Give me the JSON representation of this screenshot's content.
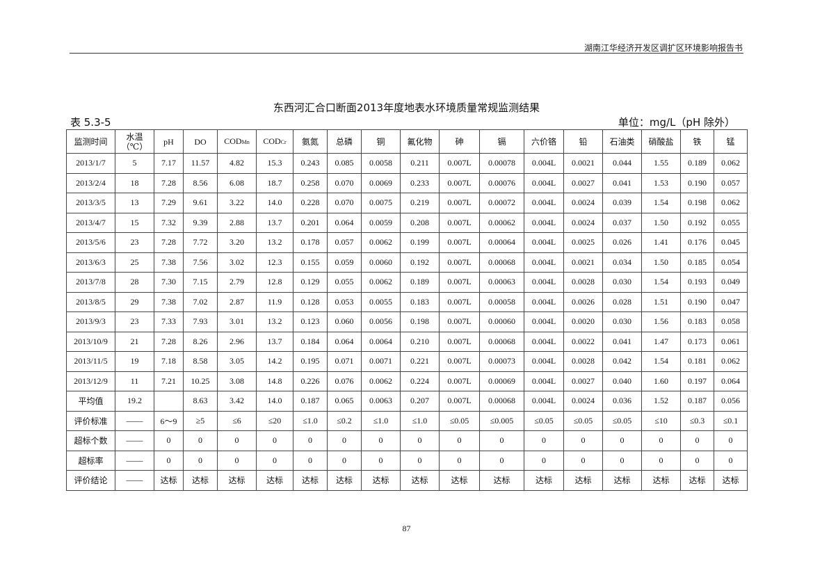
{
  "running_header": "湖南江华经济开发区调扩区环境影响报告书",
  "title": "东西河汇合口断面2013年度地表水环境质量常规监测结果",
  "table_number": "表 5.3-5",
  "unit": "单位：mg/L（pH 除外）",
  "table": {
    "headers": [
      {
        "text": "监测时间"
      },
      {
        "text": "水温",
        "line2": "（℃）"
      },
      {
        "text": "pH"
      },
      {
        "text": "DO"
      },
      {
        "text": "COD",
        "sub": "Mn"
      },
      {
        "text": "COD",
        "sub": "Cr"
      },
      {
        "text": "氨氮"
      },
      {
        "text": "总磷"
      },
      {
        "text": "铜"
      },
      {
        "text": "氟化物"
      },
      {
        "text": "砷"
      },
      {
        "text": "镉"
      },
      {
        "text": "六价铬"
      },
      {
        "text": "铅"
      },
      {
        "text": "石油类"
      },
      {
        "text": "硝酸盐"
      },
      {
        "text": "铁"
      },
      {
        "text": "锰"
      }
    ],
    "rows": [
      [
        "2013/1/7",
        "5",
        "7.17",
        "11.57",
        "4.82",
        "15.3",
        "0.243",
        "0.085",
        "0.0058",
        "0.211",
        "0.007L",
        "0.00078",
        "0.004L",
        "0.0021",
        "0.044",
        "1.55",
        "0.189",
        "0.062"
      ],
      [
        "2013/2/4",
        "18",
        "7.28",
        "8.56",
        "6.08",
        "18.7",
        "0.258",
        "0.070",
        "0.0069",
        "0.233",
        "0.007L",
        "0.00076",
        "0.004L",
        "0.0027",
        "0.041",
        "1.53",
        "0.190",
        "0.057"
      ],
      [
        "2013/3/5",
        "13",
        "7.29",
        "9.61",
        "3.22",
        "14.0",
        "0.228",
        "0.070",
        "0.0075",
        "0.219",
        "0.007L",
        "0.00072",
        "0.004L",
        "0.0024",
        "0.039",
        "1.54",
        "0.198",
        "0.062"
      ],
      [
        "2013/4/7",
        "15",
        "7.32",
        "9.39",
        "2.88",
        "13.7",
        "0.201",
        "0.064",
        "0.0059",
        "0.208",
        "0.007L",
        "0.00062",
        "0.004L",
        "0.0024",
        "0.037",
        "1.50",
        "0.192",
        "0.055"
      ],
      [
        "2013/5/6",
        "23",
        "7.28",
        "7.72",
        "3.20",
        "13.2",
        "0.178",
        "0.057",
        "0.0062",
        "0.199",
        "0.007L",
        "0.00064",
        "0.004L",
        "0.0025",
        "0.026",
        "1.41",
        "0.176",
        "0.045"
      ],
      [
        "2013/6/3",
        "25",
        "7.38",
        "7.56",
        "3.02",
        "12.3",
        "0.155",
        "0.059",
        "0.0060",
        "0.192",
        "0.007L",
        "0.00068",
        "0.004L",
        "0.0021",
        "0.034",
        "1.50",
        "0.185",
        "0.054"
      ],
      [
        "2013/7/8",
        "28",
        "7.30",
        "7.15",
        "2.79",
        "12.8",
        "0.129",
        "0.055",
        "0.0062",
        "0.189",
        "0.007L",
        "0.00063",
        "0.004L",
        "0.0028",
        "0.030",
        "1.54",
        "0.193",
        "0.049"
      ],
      [
        "2013/8/5",
        "29",
        "7.38",
        "7.02",
        "2.87",
        "11.9",
        "0.128",
        "0.053",
        "0.0055",
        "0.183",
        "0.007L",
        "0.00058",
        "0.004L",
        "0.0026",
        "0.028",
        "1.51",
        "0.190",
        "0.047"
      ],
      [
        "2013/9/3",
        "23",
        "7.33",
        "7.93",
        "3.01",
        "13.2",
        "0.123",
        "0.060",
        "0.0056",
        "0.198",
        "0.007L",
        "0.00060",
        "0.004L",
        "0.0020",
        "0.030",
        "1.56",
        "0.183",
        "0.058"
      ],
      [
        "2013/10/9",
        "21",
        "7.28",
        "8.26",
        "2.96",
        "13.7",
        "0.184",
        "0.064",
        "0.0064",
        "0.210",
        "0.007L",
        "0.00068",
        "0.004L",
        "0.0022",
        "0.041",
        "1.47",
        "0.173",
        "0.061"
      ],
      [
        "2013/11/5",
        "19",
        "7.18",
        "8.58",
        "3.05",
        "14.2",
        "0.195",
        "0.071",
        "0.0071",
        "0.221",
        "0.007L",
        "0.00073",
        "0.004L",
        "0.0028",
        "0.042",
        "1.54",
        "0.181",
        "0.062"
      ],
      [
        "2013/12/9",
        "11",
        "7.21",
        "10.25",
        "3.08",
        "14.8",
        "0.226",
        "0.076",
        "0.0062",
        "0.224",
        "0.007L",
        "0.00069",
        "0.004L",
        "0.0027",
        "0.040",
        "1.60",
        "0.197",
        "0.064"
      ],
      [
        "平均值",
        "19.2",
        "",
        "8.63",
        "3.42",
        "14.0",
        "0.187",
        "0.065",
        "0.0063",
        "0.207",
        "0.007L",
        "0.00068",
        "0.004L",
        "0.0024",
        "0.036",
        "1.52",
        "0.187",
        "0.056"
      ],
      [
        "评价标准",
        "——",
        "6～9",
        "≥5",
        "≤6",
        "≤20",
        "≤1.0",
        "≤0.2",
        "≤1.0",
        "≤1.0",
        "≤0.05",
        "≤0.005",
        "≤0.05",
        "≤0.05",
        "≤0.05",
        "≤10",
        "≤0.3",
        "≤0.1"
      ],
      [
        "超标个数",
        "——",
        "0",
        "0",
        "0",
        "0",
        "0",
        "0",
        "0",
        "0",
        "0",
        "0",
        "0",
        "0",
        "0",
        "0",
        "0",
        "0"
      ],
      [
        "超标率",
        "——",
        "0",
        "0",
        "0",
        "0",
        "0",
        "0",
        "0",
        "0",
        "0",
        "0",
        "0",
        "0",
        "0",
        "0",
        "0",
        "0"
      ],
      [
        "评价结论",
        "——",
        "达标",
        "达标",
        "达标",
        "达标",
        "达标",
        "达标",
        "达标",
        "达标",
        "达标",
        "达标",
        "达标",
        "达标",
        "达标",
        "达标",
        "达标",
        "达标"
      ]
    ]
  },
  "page_number": "87"
}
